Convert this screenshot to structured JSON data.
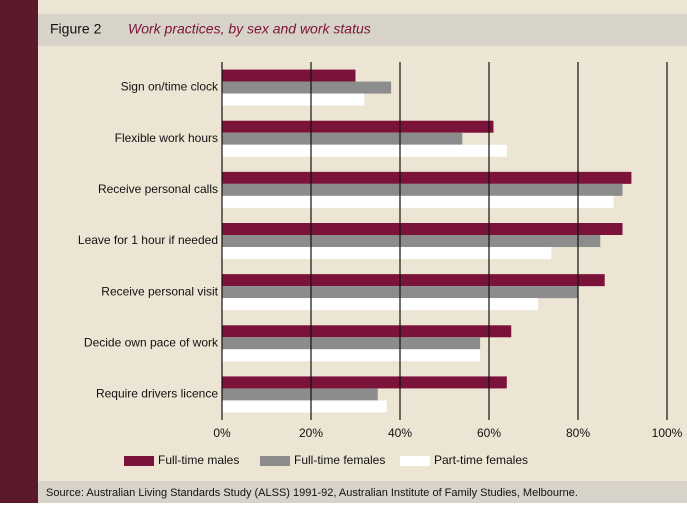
{
  "chart_data": {
    "type": "hbar",
    "figure_label": "Figure 2",
    "title": "Work practices, by sex and work status",
    "categories": [
      "Sign on/time clock",
      "Flexible work hours",
      "Receive personal calls",
      "Leave for 1 hour if needed",
      "Receive personal visit",
      "Decide own pace of work",
      "Require drivers licence"
    ],
    "series": [
      {
        "name": "Full-time males",
        "color": "#7b1239",
        "values": [
          30,
          61,
          92,
          90,
          86,
          65,
          64
        ]
      },
      {
        "name": "Full-time females",
        "color": "#8c8c8c",
        "values": [
          38,
          54,
          90,
          85,
          80,
          58,
          35
        ]
      },
      {
        "name": "Part-time females",
        "color": "#ffffff",
        "values": [
          32,
          64,
          88,
          74,
          71,
          58,
          37
        ]
      }
    ],
    "xlim": [
      0,
      100
    ],
    "xticks": [
      {
        "value": 0,
        "label": "0%"
      },
      {
        "value": 20,
        "label": "20%"
      },
      {
        "value": 40,
        "label": "40%"
      },
      {
        "value": 60,
        "label": "60%"
      },
      {
        "value": 80,
        "label": "80%"
      },
      {
        "value": 100,
        "label": "100%"
      }
    ],
    "grid": true,
    "source": "Source: Australian Living Standards Study (ALSS) 1991-92, Australian Institute of Family Studies, Melbourne."
  }
}
